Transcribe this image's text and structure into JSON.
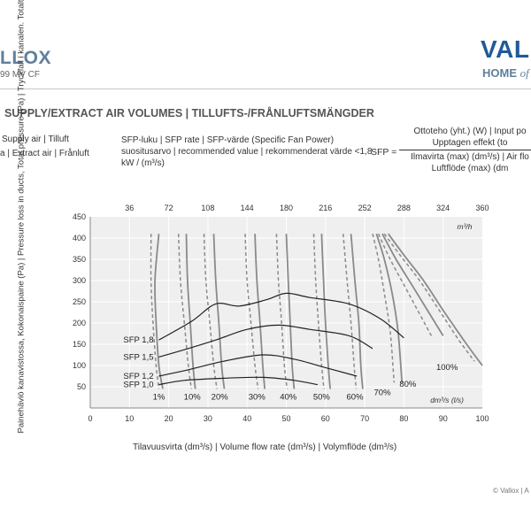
{
  "header": {
    "brand_left": "LLOX",
    "model": "99 MV CF",
    "brand_right": "VALL",
    "tagline_bold": "HOME",
    "tagline_italic": "of"
  },
  "section": {
    "heading": "SUPPLY/EXTRACT AIR VOLUMES | TILLUFTS-/FRÅNLUFTSMÄNGDER"
  },
  "legend": {
    "supply": "Supply air | Tilluft",
    "extract": "a | Extract air | Frånluft",
    "sfp_note": "SFP-luku | SFP rate | SFP-värde (Specific Fan Power) suositusarvo | recommended value | rekommenderat värde <1,8 kW / (m³/s)"
  },
  "formula": {
    "lhs": "SFP =",
    "num1": "Ottoteho (yht.) (W) | Input po",
    "num2": "Upptagen effekt (to",
    "den1": "Ilmavirta (max) (dm³/s) | Air flo",
    "den2": "Luftflöde (max) (dm"
  },
  "chart_data": {
    "type": "line",
    "ylabel": "Painehäviö kanavistossa, Kokonaispaine (Pa) | Pressure loss in ducts, Total pressure (Pa) | Tryckfall i kanalen. Totaltryck (Pa)",
    "xlabel": "Tilavuusvirta (dm³/s) | Volume flow rate (dm³/s) | Volymflöde (dm³/s)",
    "x_unit_label": "dm³/s (l/s)",
    "top_unit_label": "m³/h",
    "xlim": [
      0,
      100
    ],
    "ylim": [
      0,
      450
    ],
    "x_ticks": [
      0,
      10,
      20,
      30,
      40,
      50,
      60,
      70,
      80,
      90,
      100
    ],
    "y_ticks": [
      50,
      100,
      150,
      200,
      250,
      300,
      350,
      400,
      450
    ],
    "top_ticks": [
      36,
      72,
      108,
      144,
      180,
      216,
      252,
      288,
      324,
      360
    ],
    "grid": true,
    "fan_speed_curves": [
      {
        "label": "1%",
        "supply": [
          [
            17.5,
            410
          ],
          [
            16.5,
            300
          ],
          [
            16.8,
            200
          ],
          [
            17.5,
            100
          ],
          [
            18.5,
            45
          ]
        ],
        "extract": [
          [
            15.5,
            410
          ],
          [
            15.5,
            300
          ],
          [
            16,
            200
          ],
          [
            16.8,
            100
          ],
          [
            17.5,
            45
          ]
        ]
      },
      {
        "label": "10%",
        "supply": [
          [
            24.5,
            410
          ],
          [
            24.8,
            300
          ],
          [
            25.5,
            200
          ],
          [
            26.2,
            100
          ],
          [
            26.8,
            45
          ]
        ],
        "extract": [
          [
            22.5,
            410
          ],
          [
            23,
            300
          ],
          [
            24,
            200
          ],
          [
            25,
            100
          ],
          [
            25.8,
            45
          ]
        ]
      },
      {
        "label": "20%",
        "supply": [
          [
            31.5,
            410
          ],
          [
            32,
            300
          ],
          [
            32.8,
            200
          ],
          [
            33.5,
            100
          ],
          [
            34.2,
            45
          ]
        ],
        "extract": [
          [
            29,
            410
          ],
          [
            29.5,
            300
          ],
          [
            30.5,
            200
          ],
          [
            31.5,
            100
          ],
          [
            32.3,
            45
          ]
        ]
      },
      {
        "label": "30%",
        "supply": [
          [
            42,
            410
          ],
          [
            42.5,
            300
          ],
          [
            43.3,
            200
          ],
          [
            44,
            100
          ],
          [
            44.5,
            45
          ]
        ],
        "extract": [
          [
            39.5,
            410
          ],
          [
            40,
            300
          ],
          [
            41,
            200
          ],
          [
            42,
            100
          ],
          [
            42.8,
            45
          ]
        ]
      },
      {
        "label": "40%",
        "supply": [
          [
            50,
            410
          ],
          [
            50.5,
            300
          ],
          [
            51,
            200
          ],
          [
            51.5,
            100
          ],
          [
            52,
            45
          ]
        ],
        "extract": [
          [
            47.5,
            410
          ],
          [
            48,
            300
          ],
          [
            48.8,
            200
          ],
          [
            49.5,
            100
          ],
          [
            50.2,
            45
          ]
        ]
      },
      {
        "label": "50%",
        "supply": [
          [
            59,
            410
          ],
          [
            59.5,
            300
          ],
          [
            60,
            200
          ],
          [
            60.7,
            100
          ],
          [
            61.2,
            45
          ]
        ],
        "extract": [
          [
            57,
            410
          ],
          [
            57.5,
            300
          ],
          [
            58.2,
            200
          ],
          [
            59,
            100
          ],
          [
            59.6,
            45
          ]
        ]
      },
      {
        "label": "60%",
        "supply": [
          [
            66.5,
            410
          ],
          [
            67.5,
            300
          ],
          [
            68.5,
            200
          ],
          [
            69,
            100
          ],
          [
            69.5,
            45
          ]
        ],
        "extract": [
          [
            64.5,
            410
          ],
          [
            65.5,
            300
          ],
          [
            66.5,
            200
          ],
          [
            67.3,
            100
          ],
          [
            67.8,
            45
          ]
        ]
      },
      {
        "label": "70%",
        "supply": [
          [
            73,
            410
          ],
          [
            75,
            350
          ],
          [
            77,
            270
          ],
          [
            78.5,
            180
          ],
          [
            79.5,
            60
          ]
        ],
        "extract": [
          [
            72,
            410
          ],
          [
            73.5,
            350
          ],
          [
            75,
            270
          ],
          [
            76.5,
            180
          ],
          [
            77.5,
            60
          ]
        ]
      },
      {
        "label": "80%",
        "supply": [
          [
            74.5,
            410
          ],
          [
            78,
            350
          ],
          [
            82,
            290
          ],
          [
            86,
            230
          ],
          [
            90,
            170
          ]
        ],
        "extract": [
          [
            73.5,
            410
          ],
          [
            76.5,
            350
          ],
          [
            80,
            290
          ],
          [
            83.5,
            230
          ],
          [
            87,
            170
          ]
        ]
      },
      {
        "label": "100%",
        "supply": [
          [
            76,
            410
          ],
          [
            80,
            360
          ],
          [
            85,
            300
          ],
          [
            90,
            230
          ],
          [
            96,
            150
          ],
          [
            100,
            100
          ]
        ],
        "extract": [
          [
            75,
            410
          ],
          [
            79,
            360
          ],
          [
            84,
            300
          ],
          [
            89,
            230
          ],
          [
            94,
            160
          ],
          [
            98,
            110
          ]
        ]
      }
    ],
    "sfp_curves": [
      {
        "label": "SFP 1,8",
        "points": [
          [
            17.5,
            160
          ],
          [
            26,
            205
          ],
          [
            32,
            245
          ],
          [
            38,
            240
          ],
          [
            45,
            255
          ],
          [
            50,
            270
          ],
          [
            56,
            260
          ],
          [
            66,
            245
          ],
          [
            74,
            210
          ],
          [
            80,
            165
          ]
        ]
      },
      {
        "label": "SFP 1,5",
        "points": [
          [
            17.5,
            120
          ],
          [
            25,
            140
          ],
          [
            32,
            160
          ],
          [
            40,
            185
          ],
          [
            48,
            195
          ],
          [
            56,
            185
          ],
          [
            66,
            170
          ],
          [
            72,
            140
          ]
        ]
      },
      {
        "label": "SFP 1,2",
        "points": [
          [
            17.5,
            75
          ],
          [
            25,
            90
          ],
          [
            34,
            110
          ],
          [
            44,
            125
          ],
          [
            52,
            115
          ],
          [
            60,
            95
          ],
          [
            68,
            75
          ]
        ]
      },
      {
        "label": "SFP 1,0",
        "points": [
          [
            17.5,
            55
          ],
          [
            24,
            65
          ],
          [
            34,
            70
          ],
          [
            44,
            72
          ],
          [
            52,
            65
          ],
          [
            58,
            55
          ]
        ]
      }
    ]
  },
  "footer": {
    "copyright": "© Vallox | A"
  }
}
